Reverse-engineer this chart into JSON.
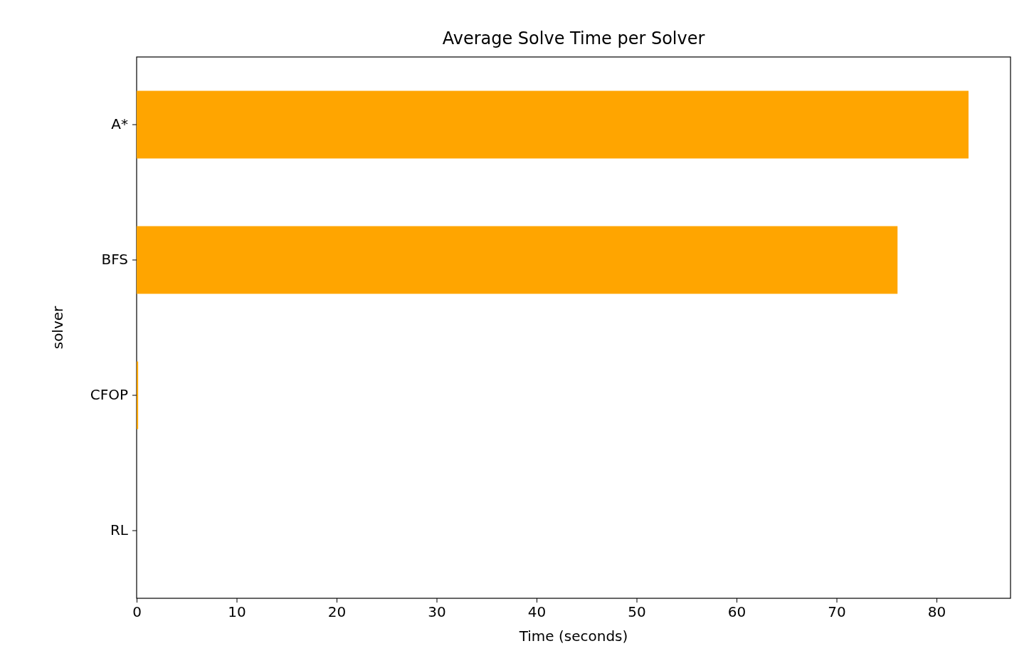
{
  "chart_data": {
    "type": "bar",
    "orientation": "horizontal",
    "title": "Average Solve Time per Solver",
    "xlabel": "Time (seconds)",
    "ylabel": "solver",
    "categories": [
      "A*",
      "BFS",
      "CFOP",
      "RL"
    ],
    "values": [
      83.2,
      76.1,
      0.15,
      0
    ],
    "color": "#ffa500",
    "xlim": [
      0,
      87.4
    ],
    "xticks": [
      0,
      10,
      20,
      30,
      40,
      50,
      60,
      70,
      80
    ],
    "grid": false
  }
}
